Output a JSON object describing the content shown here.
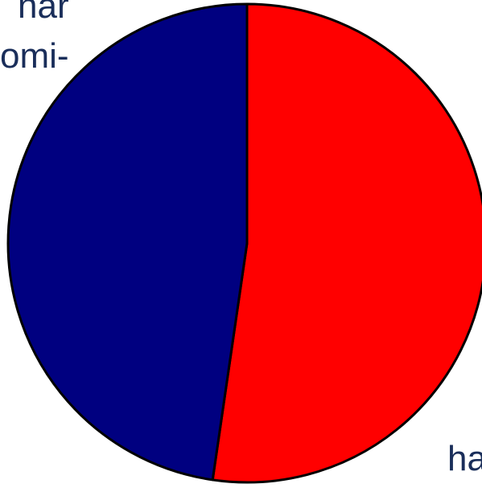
{
  "chart_data": {
    "type": "pie",
    "start_angle_deg": 90,
    "direction": "clockwise",
    "slices": [
      {
        "value": 52.3,
        "color": "#ff0000"
      },
      {
        "value": 47.7,
        "color": "#000080"
      }
    ],
    "labels": {
      "top_line_1": "nar",
      "top_line_2": "omi-",
      "bottom": "ha"
    },
    "slice_border_color": "#000000",
    "label_color": "#1a2e5a"
  }
}
